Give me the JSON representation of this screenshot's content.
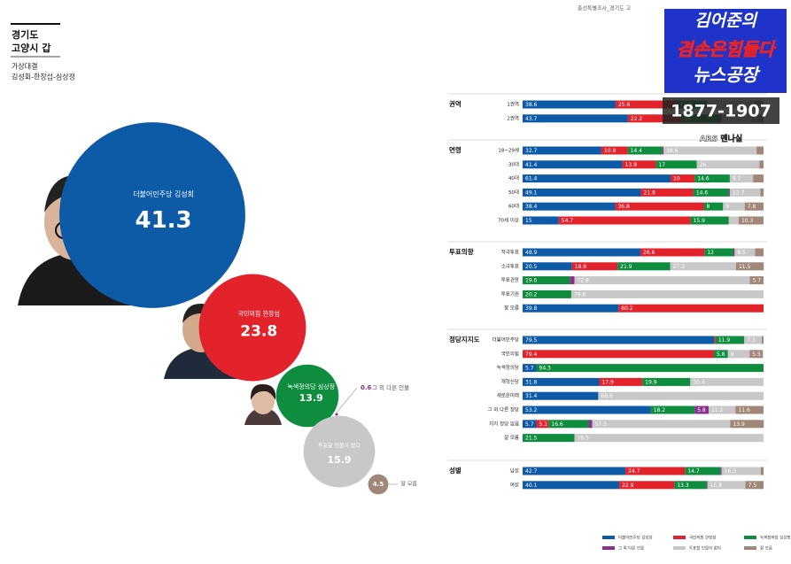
{
  "header": {
    "region": "경기도",
    "district": "고양시 갑",
    "subtitle": "가상대결",
    "matchup": "김성회-한창섭-심상정",
    "source": "총선특별조사_경기도 고"
  },
  "logo": {
    "line1": "김어준의",
    "line2": "겸손은힘들다",
    "line3": "뉴스공장",
    "phone": "1877-1907",
    "method": "ARS 멘나실"
  },
  "chart_data": [
    {
      "type": "bubble",
      "categories": [
        "더불어민주당 김성회",
        "국민의힘 한창섭",
        "녹색정의당 심상정",
        "그 외 다른 인물",
        "투표할 인물이 없다",
        "잘 모름"
      ],
      "values": [
        41.3,
        23.8,
        13.9,
        0.6,
        15.9,
        4.5
      ],
      "colors": [
        "#0d5aa7",
        "#e3232c",
        "#0f8d3e",
        "#8b2f8f",
        "#c8c8c8",
        "#a08778"
      ]
    },
    {
      "type": "stacked-bar",
      "xlim": [
        0,
        100
      ],
      "groups": [
        {
          "label": "권역",
          "categories": [
            "1권역",
            "2권역"
          ]
        },
        {
          "label": "연령",
          "categories": [
            "18~29세",
            "30대",
            "40대",
            "50대",
            "60대",
            "70세 이상"
          ]
        },
        {
          "label": "투표의향",
          "categories": [
            "적극투표",
            "소극투표",
            "투표관망",
            "투표기권",
            "잘 모름"
          ]
        },
        {
          "label": "정당지지도",
          "categories": [
            "더불어민주당",
            "국민의힘",
            "녹색정의당",
            "개혁신당",
            "새로운미래",
            "그 외 다른 정당",
            "지지 정당 없음",
            "잘 모름"
          ]
        },
        {
          "label": "성별",
          "categories": [
            "남성",
            "여성"
          ]
        }
      ],
      "series": [
        {
          "name": "더불어민주당 김성회",
          "color": "#0d5aa7",
          "values": [
            38.6,
            43.7,
            32.7,
            41.4,
            61.4,
            49.1,
            38.4,
            15.0,
            48.9,
            20.5,
            0,
            0,
            39.8,
            79.5,
            0,
            5.7,
            31.8,
            31.4,
            53.2,
            5.7,
            0,
            42.7,
            40.1
          ]
        },
        {
          "name": "국민의힘 한창섭",
          "color": "#e3232c",
          "values": [
            25.6,
            22.2,
            10.9,
            13.9,
            10.0,
            21.8,
            36.8,
            54.7,
            26.6,
            18.9,
            0,
            0,
            60.2,
            0.6,
            79.4,
            0,
            17.9,
            0,
            0,
            5.1,
            0,
            24.7,
            22.9
          ]
        },
        {
          "name": "녹색정의당 심상정",
          "color": "#0f8d3e",
          "values": [
            11.7,
            16.0,
            14.4,
            17.0,
            14.6,
            14.6,
            8.0,
            15.9,
            12.0,
            21.9,
            19.6,
            20.2,
            0,
            11.9,
            5.8,
            94.3,
            19.9,
            0,
            18.2,
            16.6,
            21.5,
            14.7,
            13.3
          ]
        },
        {
          "name": "그 외 다른 인물",
          "color": "#8b2f8f",
          "values": [
            0.5,
            0.7,
            0.5,
            0,
            0,
            0.5,
            0,
            0,
            0.5,
            0,
            1.9,
            0,
            0,
            0,
            0,
            0,
            0,
            0,
            5.8,
            1.5,
            0,
            0.5,
            0.4
          ]
        },
        {
          "name": "투표할 인물이 없다",
          "color": "#c8c8c8",
          "values": [
            19.5,
            12.4,
            38.6,
            26.0,
            9.7,
            12.7,
            9.0,
            4.1,
            8.5,
            27.3,
            72.8,
            79.8,
            0,
            7.3,
            9.0,
            0,
            30.4,
            68.6,
            11.2,
            57.3,
            78.5,
            16.3,
            15.8
          ]
        },
        {
          "name": "잘 모름",
          "color": "#a08778",
          "values": [
            4.1,
            5.0,
            2.9,
            1.7,
            4.3,
            1.3,
            7.8,
            10.3,
            3.5,
            11.5,
            5.7,
            0,
            0,
            0.7,
            5.5,
            0,
            0,
            0,
            11.6,
            13.9,
            0,
            1.1,
            7.5
          ]
        }
      ]
    }
  ]
}
